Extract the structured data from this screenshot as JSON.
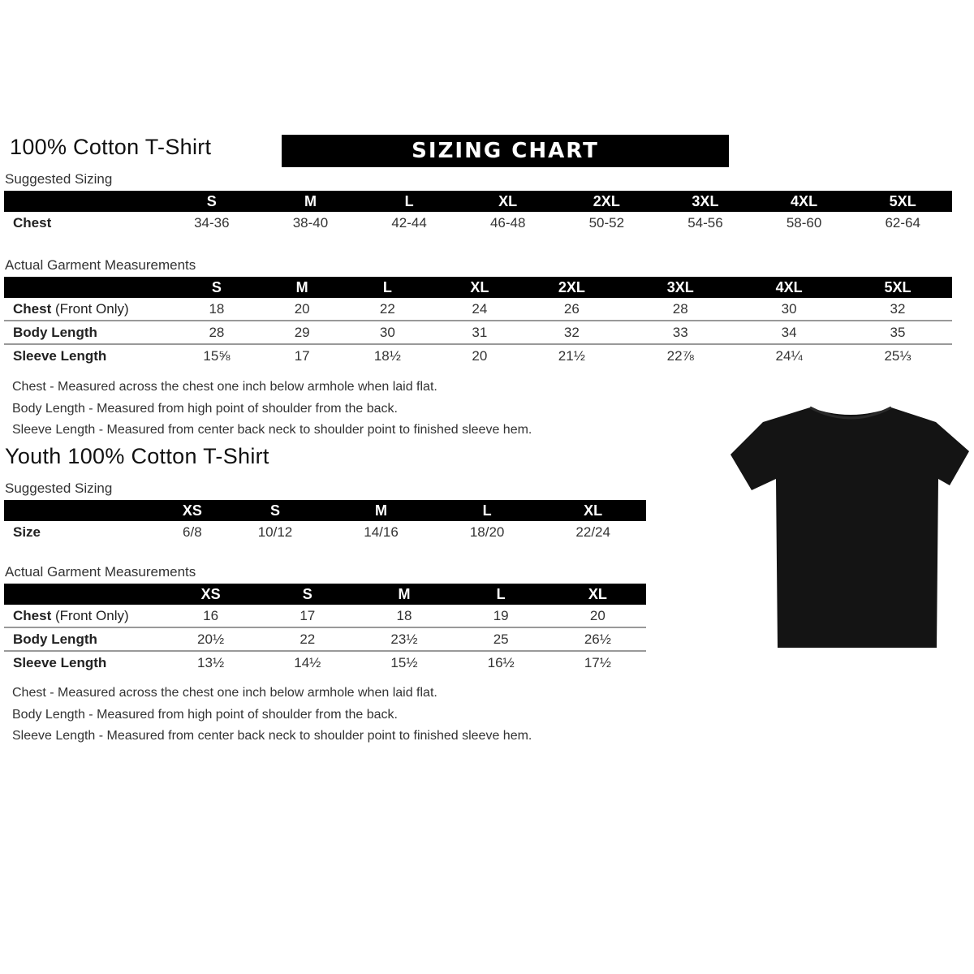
{
  "adult": {
    "title": "100% Cotton T-Shirt",
    "banner": "SIZING CHART",
    "suggested_label": "Suggested Sizing",
    "sizes": [
      "S",
      "M",
      "L",
      "XL",
      "2XL",
      "3XL",
      "4XL",
      "5XL"
    ],
    "suggested_rows": [
      {
        "label": "Chest",
        "values": [
          "34-36",
          "38-40",
          "42-44",
          "46-48",
          "50-52",
          "54-56",
          "58-60",
          "62-64"
        ]
      }
    ],
    "actual_label": "Actual Garment Measurements",
    "actual_rows": [
      {
        "label": "Chest",
        "label_note": "(Front Only)",
        "values": [
          "18",
          "20",
          "22",
          "24",
          "26",
          "28",
          "30",
          "32"
        ]
      },
      {
        "label": "Body Length",
        "values": [
          "28",
          "29",
          "30",
          "31",
          "32",
          "33",
          "34",
          "35"
        ]
      },
      {
        "label": "Sleeve Length",
        "values": [
          "15⅝",
          "17",
          "18½",
          "20",
          "21½",
          "22⅞",
          "24¼",
          "25⅓"
        ]
      }
    ],
    "notes": [
      "Chest - Measured across the chest one inch below armhole when laid flat.",
      "Body Length - Measured from high point of shoulder from the back.",
      "Sleeve Length - Measured from center back neck to shoulder point to finished sleeve hem."
    ]
  },
  "youth": {
    "title": "Youth 100% Cotton T-Shirt",
    "suggested_label": "Suggested Sizing",
    "sizes": [
      "XS",
      "S",
      "M",
      "L",
      "XL"
    ],
    "suggested_rows": [
      {
        "label": "Size",
        "values": [
          "6/8",
          "10/12",
          "14/16",
          "18/20",
          "22/24"
        ]
      }
    ],
    "actual_label": "Actual Garment Measurements",
    "actual_rows": [
      {
        "label": "Chest",
        "label_note": "(Front Only)",
        "values": [
          "16",
          "17",
          "18",
          "19",
          "20"
        ]
      },
      {
        "label": "Body Length",
        "values": [
          "20½",
          "22",
          "23½",
          "25",
          "26½"
        ]
      },
      {
        "label": "Sleeve Length",
        "values": [
          "13½",
          "14½",
          "15½",
          "16½",
          "17½"
        ]
      }
    ],
    "notes": [
      "Chest - Measured across the chest one inch below armhole when laid flat.",
      "Body Length - Measured from high point of shoulder from the back.",
      "Sleeve Length - Measured from center back neck to shoulder point to finished sleeve hem."
    ]
  },
  "image": {
    "name": "black-tshirt",
    "color": "#111111"
  }
}
